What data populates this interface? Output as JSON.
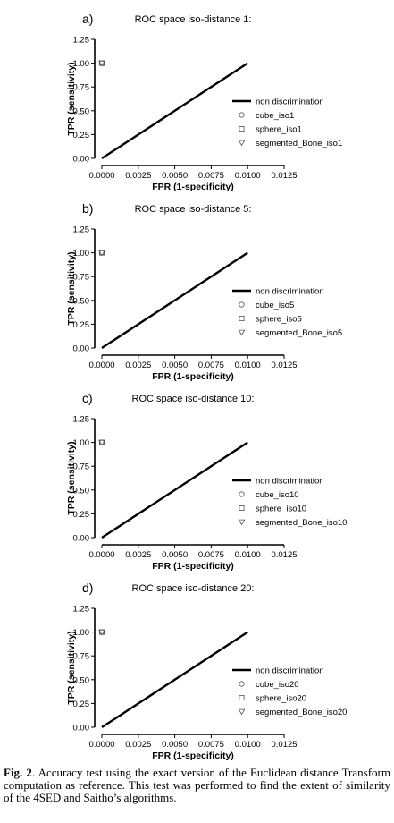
{
  "chart_data": [
    {
      "panel_label": "a)",
      "type": "line",
      "title": "ROC space iso-distance 1:",
      "xlabel": "FPR (1-specificity)",
      "ylabel": "TPR (sensitivity)",
      "xlim": [
        0,
        0.0125
      ],
      "ylim": [
        0,
        1.25
      ],
      "xticks": [
        "0.0000",
        "0.0025",
        "0.0050",
        "0.0075",
        "0.0100",
        "0.0125"
      ],
      "yticks": [
        "0.00",
        "0.25",
        "0.50",
        "0.75",
        "1.00",
        "1.25"
      ],
      "legend_position": "right",
      "series": [
        {
          "name": "non discrimination",
          "marker": "line",
          "x": [
            0,
            0.01
          ],
          "y": [
            0,
            1
          ]
        },
        {
          "name": "cube_iso1",
          "marker": "circle",
          "x": [
            0
          ],
          "y": [
            1
          ]
        },
        {
          "name": "sphere_iso1",
          "marker": "square",
          "x": [
            0
          ],
          "y": [
            1
          ]
        },
        {
          "name": "segmented_Bone_iso1",
          "marker": "triangle-down",
          "x": [
            0
          ],
          "y": [
            1
          ]
        }
      ]
    },
    {
      "panel_label": "b)",
      "type": "line",
      "title": "ROC space iso-distance 5:",
      "xlabel": "FPR (1-specificity)",
      "ylabel": "TPR (sensitivity)",
      "xlim": [
        0,
        0.0125
      ],
      "ylim": [
        0,
        1.25
      ],
      "xticks": [
        "0.0000",
        "0.0025",
        "0.0050",
        "0.0075",
        "0.0100",
        "0.0125"
      ],
      "yticks": [
        "0.00",
        "0.25",
        "0.50",
        "0.75",
        "1.00",
        "1.25"
      ],
      "legend_position": "right",
      "series": [
        {
          "name": "non discrimination",
          "marker": "line",
          "x": [
            0,
            0.01
          ],
          "y": [
            0,
            1
          ]
        },
        {
          "name": "cube_iso5",
          "marker": "circle",
          "x": [
            0
          ],
          "y": [
            1
          ]
        },
        {
          "name": "sphere_iso5",
          "marker": "square",
          "x": [
            0
          ],
          "y": [
            1
          ]
        },
        {
          "name": "segmented_Bone_iso5",
          "marker": "triangle-down",
          "x": [
            0
          ],
          "y": [
            1
          ]
        }
      ]
    },
    {
      "panel_label": "c)",
      "type": "line",
      "title": "ROC space iso-distance 10:",
      "xlabel": "FPR (1-specificity)",
      "ylabel": "TPR (sensitivity)",
      "xlim": [
        0,
        0.0125
      ],
      "ylim": [
        0,
        1.25
      ],
      "xticks": [
        "0.0000",
        "0.0025",
        "0.0050",
        "0.0075",
        "0.0100",
        "0.0125"
      ],
      "yticks": [
        "0.00",
        "0.25",
        "0.50",
        "0.75",
        "1.00",
        "1.25"
      ],
      "legend_position": "right",
      "series": [
        {
          "name": "non discrimination",
          "marker": "line",
          "x": [
            0,
            0.01
          ],
          "y": [
            0,
            1
          ]
        },
        {
          "name": "cube_iso10",
          "marker": "circle",
          "x": [
            0
          ],
          "y": [
            1
          ]
        },
        {
          "name": "sphere_iso10",
          "marker": "square",
          "x": [
            0
          ],
          "y": [
            1
          ]
        },
        {
          "name": "segmented_Bone_iso10",
          "marker": "triangle-down",
          "x": [
            0
          ],
          "y": [
            1
          ]
        }
      ]
    },
    {
      "panel_label": "d)",
      "type": "line",
      "title": "ROC space iso-distance 20:",
      "xlabel": "FPR (1-specificity)",
      "ylabel": "TPR (sensitivity)",
      "xlim": [
        0,
        0.0125
      ],
      "ylim": [
        0,
        1.25
      ],
      "xticks": [
        "0.0000",
        "0.0025",
        "0.0050",
        "0.0075",
        "0.0100",
        "0.0125"
      ],
      "yticks": [
        "0.00",
        "0.25",
        "0.50",
        "0.75",
        "1.00",
        "1.25"
      ],
      "legend_position": "right",
      "series": [
        {
          "name": "non discrimination",
          "marker": "line",
          "x": [
            0,
            0.01
          ],
          "y": [
            0,
            1
          ]
        },
        {
          "name": "cube_iso20",
          "marker": "circle",
          "x": [
            0
          ],
          "y": [
            1
          ]
        },
        {
          "name": "sphere_iso20",
          "marker": "square",
          "x": [
            0
          ],
          "y": [
            1
          ]
        },
        {
          "name": "segmented_Bone_iso20",
          "marker": "triangle-down",
          "x": [
            0
          ],
          "y": [
            1
          ]
        }
      ]
    }
  ],
  "caption": {
    "label": "Fig. 2",
    "text": ". Accuracy test using the exact version of the Euclidean distance Transform computation as reference. This test was performed to find the extent of similarity of the 4SED and Saitho’s algorithms."
  }
}
